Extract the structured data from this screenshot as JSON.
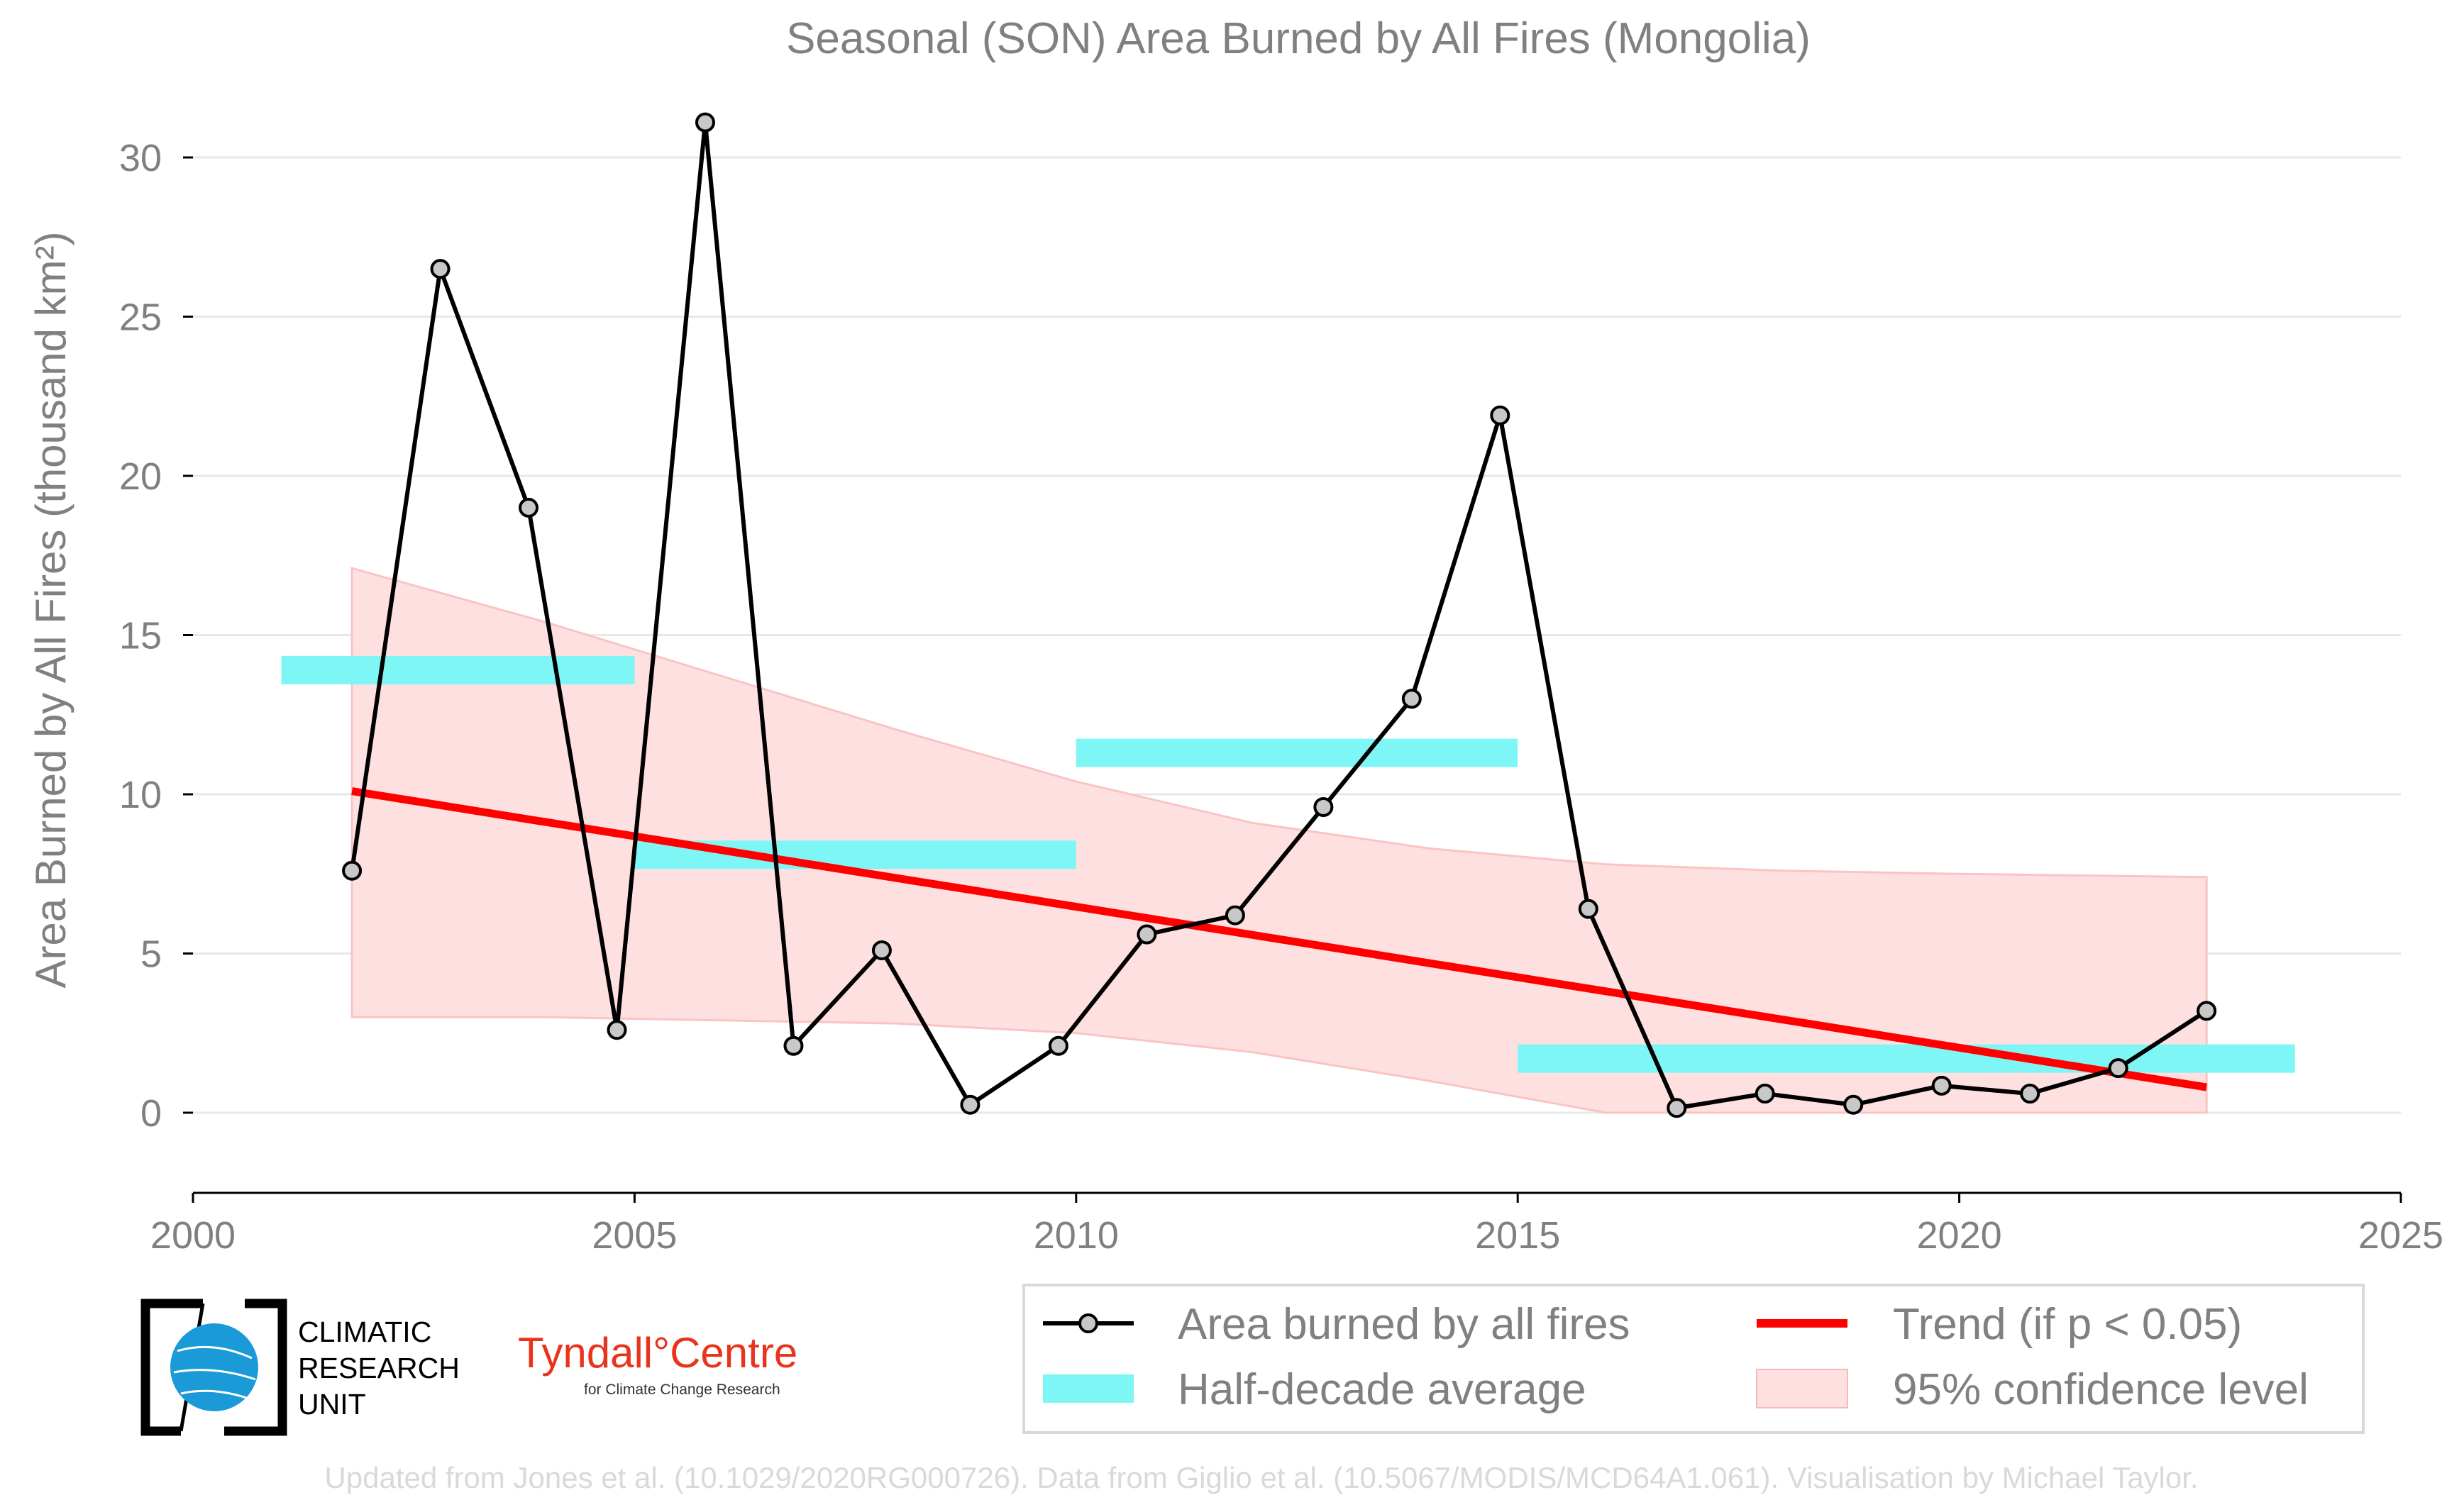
{
  "chart_data": {
    "type": "line",
    "title": "Seasonal (SON) Area Burned by All Fires (Mongolia)",
    "ylabel": "Area Burned by All Fires (thousand km²)",
    "xlabel": "",
    "xlim": [
      2000,
      2025
    ],
    "ylim": [
      -2.5,
      32
    ],
    "x_ticks": [
      "2000",
      "2005",
      "2010",
      "2015",
      "2020",
      "2025"
    ],
    "y_ticks": [
      "0",
      "5",
      "10",
      "15",
      "20",
      "25",
      "30"
    ],
    "grid": "horizontal",
    "series": [
      {
        "name": "Area burned by all fires",
        "color": "#000000",
        "x": [
          2001.8,
          2002.8,
          2003.8,
          2004.8,
          2005.8,
          2006.8,
          2007.8,
          2008.8,
          2009.8,
          2010.8,
          2011.8,
          2012.8,
          2013.8,
          2014.8,
          2015.8,
          2016.8,
          2017.8,
          2018.8,
          2019.8,
          2020.8,
          2021.8,
          2022.8
        ],
        "y": [
          7.6,
          26.5,
          19.0,
          2.6,
          31.1,
          2.1,
          5.1,
          0.25,
          2.1,
          5.6,
          6.2,
          9.6,
          13.0,
          21.9,
          6.4,
          0.15,
          0.6,
          0.25,
          0.85,
          0.6,
          1.4,
          3.2
        ]
      }
    ],
    "half_decade_average": {
      "name": "Half-decade average",
      "color": "#7ff6f6",
      "segments": [
        {
          "x0": 2001,
          "x1": 2005,
          "y": 13.9
        },
        {
          "x0": 2005,
          "x1": 2010,
          "y": 8.1
        },
        {
          "x0": 2010,
          "x1": 2015,
          "y": 11.3
        },
        {
          "x0": 2015,
          "x1": 2023.8,
          "y": 1.7
        }
      ]
    },
    "trend": {
      "name": "Trend (if p < 0.05)",
      "color": "#ff0000",
      "x": [
        2001.8,
        2022.8
      ],
      "y": [
        10.1,
        0.8
      ]
    },
    "confidence_band": {
      "name": "95% confidence level",
      "color": "#ffe0e0",
      "x": [
        2001.8,
        2004,
        2006,
        2008,
        2010,
        2012,
        2014,
        2016,
        2018,
        2020,
        2022.8
      ],
      "upper": [
        17.1,
        15.4,
        13.7,
        12.0,
        10.4,
        9.1,
        8.3,
        7.8,
        7.6,
        7.5,
        7.4
      ],
      "lower": [
        3.0,
        3.0,
        2.9,
        2.8,
        2.5,
        1.9,
        1.0,
        -0.3,
        -1.0,
        -1.5,
        -2.0
      ]
    },
    "legend_placement": "bottom-right"
  },
  "legend": {
    "items": [
      {
        "label": "Area burned by all fires"
      },
      {
        "label": "Trend (if p < 0.05)"
      },
      {
        "label": "Half-decade average"
      },
      {
        "label": "95% confidence level"
      }
    ]
  },
  "logos": {
    "cru_line1": "CLIMATIC",
    "cru_line2": "RESEARCH",
    "cru_line3": "UNIT",
    "tyndall_main": "Tyndall°Centre",
    "tyndall_sub": "for Climate Change Research"
  },
  "credit": "Updated from Jones et al. (10.1029/2020RG000726). Data from Giglio et al. (10.5067/MODIS/MCD64A1.061). Visualisation by Michael Taylor."
}
